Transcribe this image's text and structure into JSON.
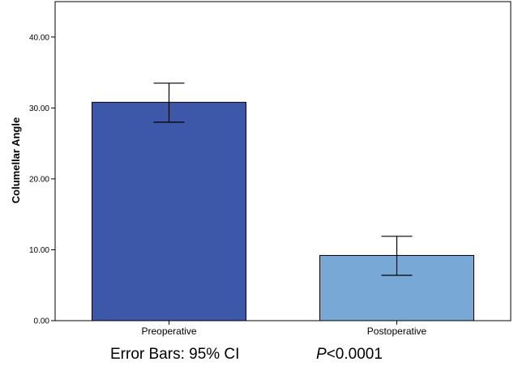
{
  "chart_data": {
    "type": "bar",
    "categories": [
      "Preoperative",
      "Postoperative"
    ],
    "values": [
      30.8,
      9.2
    ],
    "error_bars": {
      "lower": [
        28.0,
        6.4
      ],
      "upper": [
        33.5,
        11.9
      ]
    },
    "colors": [
      "#3d57a9",
      "#78a9d6"
    ],
    "ylabel": "Columellar Angle",
    "xlabel": "",
    "ylim": [
      0,
      45
    ],
    "yticks": [
      "0.00",
      "10.00",
      "20.00",
      "30.00",
      "40.00"
    ],
    "yticks_values": [
      0,
      10,
      20,
      30,
      40
    ],
    "grid": false,
    "caption_left": "Error Bars: 95% CI",
    "caption_p_letter": "P",
    "caption_p_value": "<0.0001"
  }
}
